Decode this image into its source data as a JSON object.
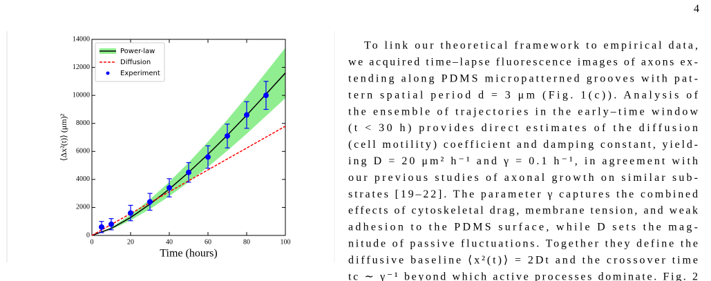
{
  "page_number": "4",
  "chart_data": {
    "type": "line",
    "x_label": "Time (hours)",
    "y_label": "⟨Δx²(t)⟩ (μm)²",
    "xlim": [
      0,
      100
    ],
    "ylim": [
      0,
      14000
    ],
    "xticks": [
      0,
      20,
      40,
      60,
      80,
      100
    ],
    "yticks": [
      0,
      2000,
      4000,
      6000,
      8000,
      10000,
      12000,
      14000
    ],
    "grid": false,
    "legend": "upper left",
    "series": [
      {
        "name": "Power-law",
        "type": "line",
        "color": "#000000",
        "band_color": "#90ee90",
        "dash": false,
        "x": [
          0,
          10,
          20,
          30,
          40,
          50,
          60,
          70,
          80,
          90,
          100
        ],
        "values": [
          0,
          494,
          1279,
          2228,
          3313,
          4505,
          5792,
          7153,
          8590,
          10090,
          11600
        ],
        "lower": [
          0,
          417,
          1081,
          1883,
          2799,
          3807,
          4894,
          6044,
          7259,
          8526,
          9802
        ],
        "upper": [
          0,
          571,
          1477,
          2573,
          3827,
          5203,
          6690,
          8262,
          9921,
          11654,
          13398
        ]
      },
      {
        "name": "Diffusion",
        "type": "line",
        "color": "#ff0000",
        "dash": true,
        "x": [
          0,
          100
        ],
        "values": [
          0,
          7800
        ]
      },
      {
        "name": "Experiment",
        "type": "errorbar",
        "color": "#0000ff",
        "x": [
          5,
          10,
          20,
          30,
          40,
          50,
          60,
          70,
          80,
          90
        ],
        "values": [
          600,
          800,
          1600,
          2400,
          3400,
          4500,
          5600,
          7100,
          8600,
          10000
        ],
        "errors": [
          400,
          400,
          550,
          600,
          650,
          700,
          800,
          850,
          950,
          1000
        ]
      }
    ]
  },
  "body_text": {
    "lines": [
      "To link our theoretical framework to empirical data,",
      "we acquired time–lapse fluorescence images of axons ex-",
      "tending along PDMS micropatterned grooves with pat-",
      "tern spatial period d = 3 μm (Fig. 1(c)). Analysis of",
      "the ensemble of trajectories in the early–time window",
      "(t < 30 h) provides direct estimates of the diffusion",
      "(cell motility) coefficient and damping constant, yield-",
      "ing D = 20 μm² h⁻¹ and γ = 0.1 h⁻¹, in agreement with",
      "our previous studies of axonal growth on similar sub-",
      "strates [19–22]. The parameter γ captures the combined",
      "effects of cytoskeletal drag, membrane tension, and weak",
      "adhesion to the PDMS surface, while D sets the mag-",
      "nitude of passive fluctuations. Together they define the",
      "diffusive baseline ⟨x²(t)⟩ = 2Dt and the crossover time",
      "tc ∼ γ⁻¹ beyond which active processes dominate. Fig. 2"
    ]
  }
}
